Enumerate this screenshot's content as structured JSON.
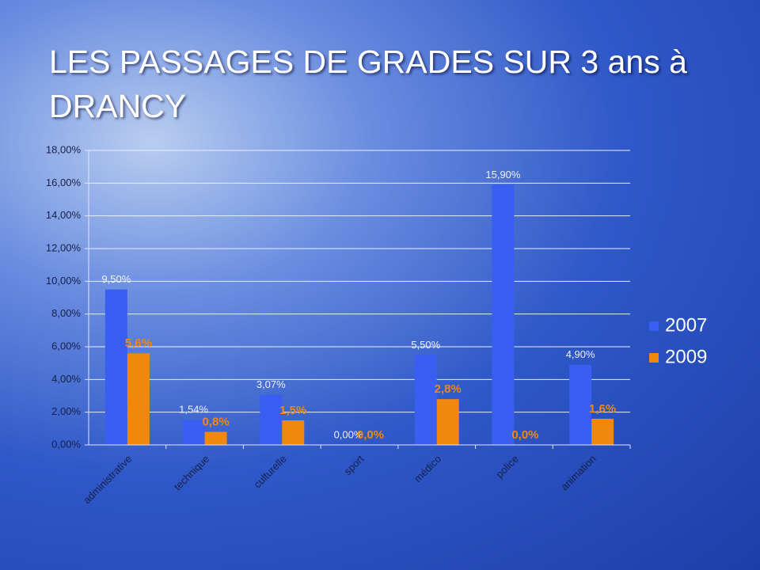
{
  "chart_data": {
    "type": "bar",
    "title": "LES PASSAGES DE GRADES SUR 3 ans à DRANCY",
    "categories": [
      "administrative",
      "technique",
      "culturelle",
      "sport",
      "médico",
      "police",
      "animation"
    ],
    "series": [
      {
        "name": "2007",
        "color": "#3a5ef2",
        "values": [
          9.5,
          1.54,
          3.07,
          0,
          5.5,
          15.9,
          4.9
        ],
        "value_labels": [
          "9,50%",
          "1,54%",
          "3,07%",
          "0,00%",
          "5,50%",
          "15,90%",
          "4,90%"
        ]
      },
      {
        "name": "2009",
        "color": "#f0880f",
        "values": [
          5.6,
          0.8,
          1.5,
          0.0,
          2.8,
          0.0,
          1.6
        ],
        "value_labels": [
          "5,6%",
          "0,8%",
          "1,5%",
          "0,0%",
          "2,8%",
          "0,0%",
          "1,6%"
        ]
      }
    ],
    "ylim": [
      0,
      18
    ],
    "yticks": [
      {
        "value": 0,
        "label": "0,00%"
      },
      {
        "value": 2,
        "label": "2,00%"
      },
      {
        "value": 4,
        "label": "4,00%"
      },
      {
        "value": 6,
        "label": "6,00%"
      },
      {
        "value": 8,
        "label": "8,00%"
      },
      {
        "value": 10,
        "label": "10,00%"
      },
      {
        "value": 12,
        "label": "12,00%"
      },
      {
        "value": 14,
        "label": "14,00%"
      },
      {
        "value": 16,
        "label": "16,00%"
      },
      {
        "value": 18,
        "label": "18,00%"
      }
    ],
    "grid": true,
    "legend": "right"
  }
}
